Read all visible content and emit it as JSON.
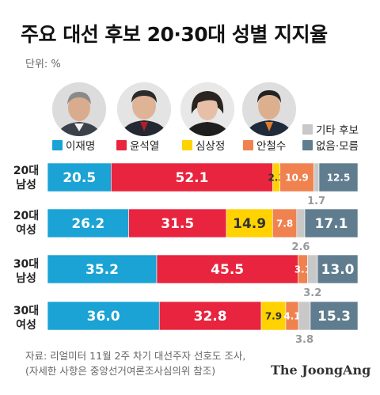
{
  "title": "주요 대선 후보 20·30대 성별 지지율",
  "unit": "단위: %",
  "source_line1": "자료: 리얼미터 11월 2주 차기 대선주자 선호도 조사,",
  "source_line2": "(자세한 사항은 중앙선거여론조사심의위 참조)",
  "brand": "The JoongAng",
  "legend": [
    {
      "name": "이재명",
      "color": "#1aa3d4"
    },
    {
      "name": "윤석열",
      "color": "#e8243e"
    },
    {
      "name": "심상정",
      "color": "#ffd200"
    },
    {
      "name": "안철수",
      "color": "#f08250"
    },
    {
      "name": "기타 후보",
      "color": "#c8c8c8"
    },
    {
      "name": "없음·모름",
      "color": "#5f7d8e"
    }
  ],
  "chart_data": {
    "type": "bar",
    "stacked": true,
    "orientation": "horizontal",
    "categories": [
      "20대\n남성",
      "20대\n여성",
      "30대\n남성",
      "30대\n여성"
    ],
    "series": [
      {
        "name": "이재명",
        "values": [
          20.5,
          26.2,
          35.2,
          36.0
        ]
      },
      {
        "name": "윤석열",
        "values": [
          52.1,
          31.5,
          45.5,
          32.8
        ]
      },
      {
        "name": "심상정",
        "values": [
          2.3,
          14.9,
          0.0,
          7.9
        ]
      },
      {
        "name": "안철수",
        "values": [
          10.9,
          7.8,
          3.1,
          4.1
        ]
      },
      {
        "name": "기타 후보",
        "values": [
          1.7,
          2.6,
          3.2,
          3.8
        ]
      },
      {
        "name": "없음·모름",
        "values": [
          12.5,
          17.1,
          13.0,
          15.3
        ]
      }
    ]
  }
}
